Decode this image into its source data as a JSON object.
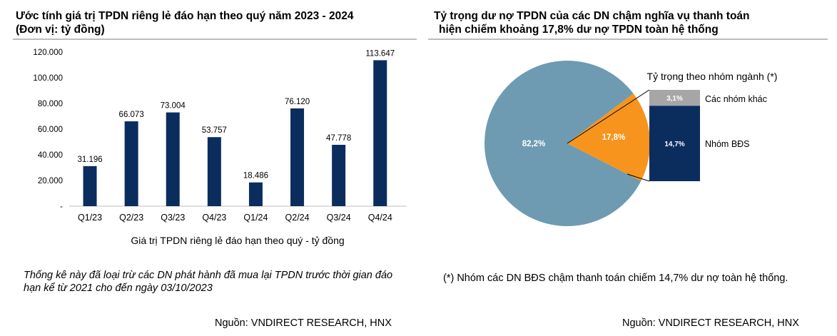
{
  "left_panel": {
    "title_line1": "Ước tính giá trị TPDN riêng lẻ đáo hạn theo quý năm 2023 - 2024",
    "title_line2": "(Đơn vị: tỷ đồng)",
    "note": "Thống kê này đã loại trừ các DN phát hành đã mua lại TPDN trước thời gian đáo hạn kể từ 2021 cho đến ngày 03/10/2023",
    "source": "Nguồn: VNDIRECT RESEARCH, HNX"
  },
  "right_panel": {
    "title_line1": "Tỷ trọng dư nợ TPDN của các DN chậm nghĩa vụ thanh toán",
    "title_line2": "hiện chiếm khoảng 17,8% dư nợ TPDN toàn hệ thống",
    "note": "(*) Nhóm các DN BĐS chậm thanh toán chiếm 14,7% dư nợ toàn hệ thống.",
    "source": "Nguồn: VNDIRECT RESEARCH, HNX"
  },
  "chart_data": [
    {
      "type": "bar",
      "categories": [
        "Q1/23",
        "Q2/23",
        "Q3/23",
        "Q4/23",
        "Q1/24",
        "Q2/24",
        "Q3/24",
        "Q4/24"
      ],
      "values": [
        31196,
        66073,
        73004,
        53757,
        18486,
        76120,
        47778,
        113647
      ],
      "value_labels": [
        "31.196",
        "66.073",
        "73.004",
        "53.757",
        "18.486",
        "76.120",
        "47.778",
        "113.647"
      ],
      "yticks": [
        "-",
        "20.000",
        "40.000",
        "60.000",
        "80.000",
        "100.000",
        "120.000"
      ],
      "ytick_values": [
        0,
        20000,
        40000,
        60000,
        80000,
        100000,
        120000
      ],
      "ylim": [
        0,
        120000
      ],
      "xlabel": "Giá trị TPDN riêng lẻ đáo hạn theo quý - tỷ đồng",
      "ylabel": "",
      "grid": false,
      "colors": {
        "bar": "#0b2d5e"
      }
    },
    {
      "type": "pie",
      "slices": [
        {
          "label": "82,2%",
          "value": 82.2,
          "color": "#6e9bb1"
        },
        {
          "label": "17,8%",
          "value": 17.8,
          "color": "#f7941d"
        }
      ],
      "breakdown": {
        "title": "Tỷ trọng theo nhóm ngành (*)",
        "segments": [
          {
            "value_label": "3,1%",
            "value": 3.1,
            "name": "Các nhóm khác",
            "color": "#a6a6a6"
          },
          {
            "value_label": "14,7%",
            "value": 14.7,
            "name": "Nhóm BĐS",
            "color": "#0b2d5e"
          }
        ]
      }
    }
  ]
}
